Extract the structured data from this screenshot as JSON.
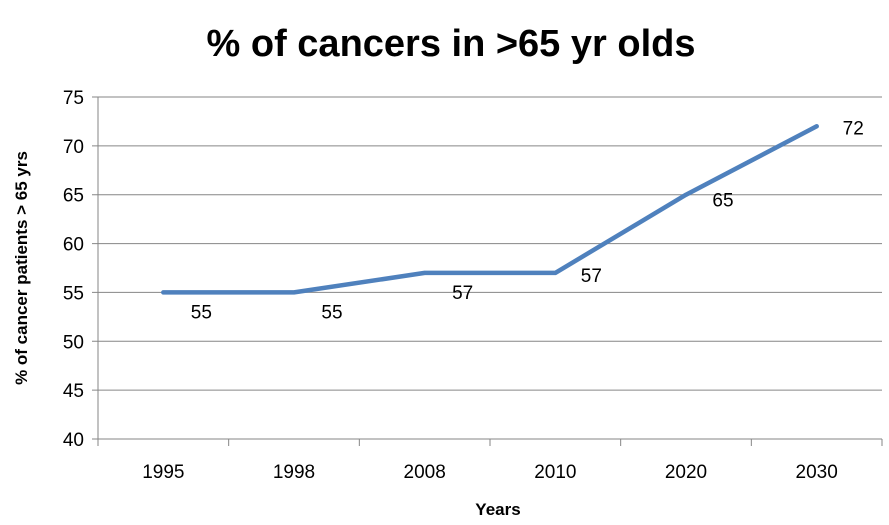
{
  "chart_data": {
    "type": "line",
    "title": "% of cancers in >65 yr olds",
    "xlabel": "Years",
    "ylabel": "% of cancer patients > 65 yrs",
    "categories": [
      "1995",
      "1998",
      "2008",
      "2010",
      "2020",
      "2030"
    ],
    "series": [
      {
        "values": [
          55,
          55,
          57,
          57,
          65,
          72
        ]
      }
    ],
    "data_labels": [
      "55",
      "55",
      "57",
      "57",
      "65",
      "72"
    ],
    "ylim": [
      40,
      75
    ],
    "yticks": [
      "40",
      "45",
      "50",
      "55",
      "60",
      "65",
      "70",
      "75"
    ],
    "grid": true,
    "legend": "none",
    "colors": {
      "line": "#4F81BD",
      "grid": "#868686",
      "axis": "#868686"
    }
  }
}
